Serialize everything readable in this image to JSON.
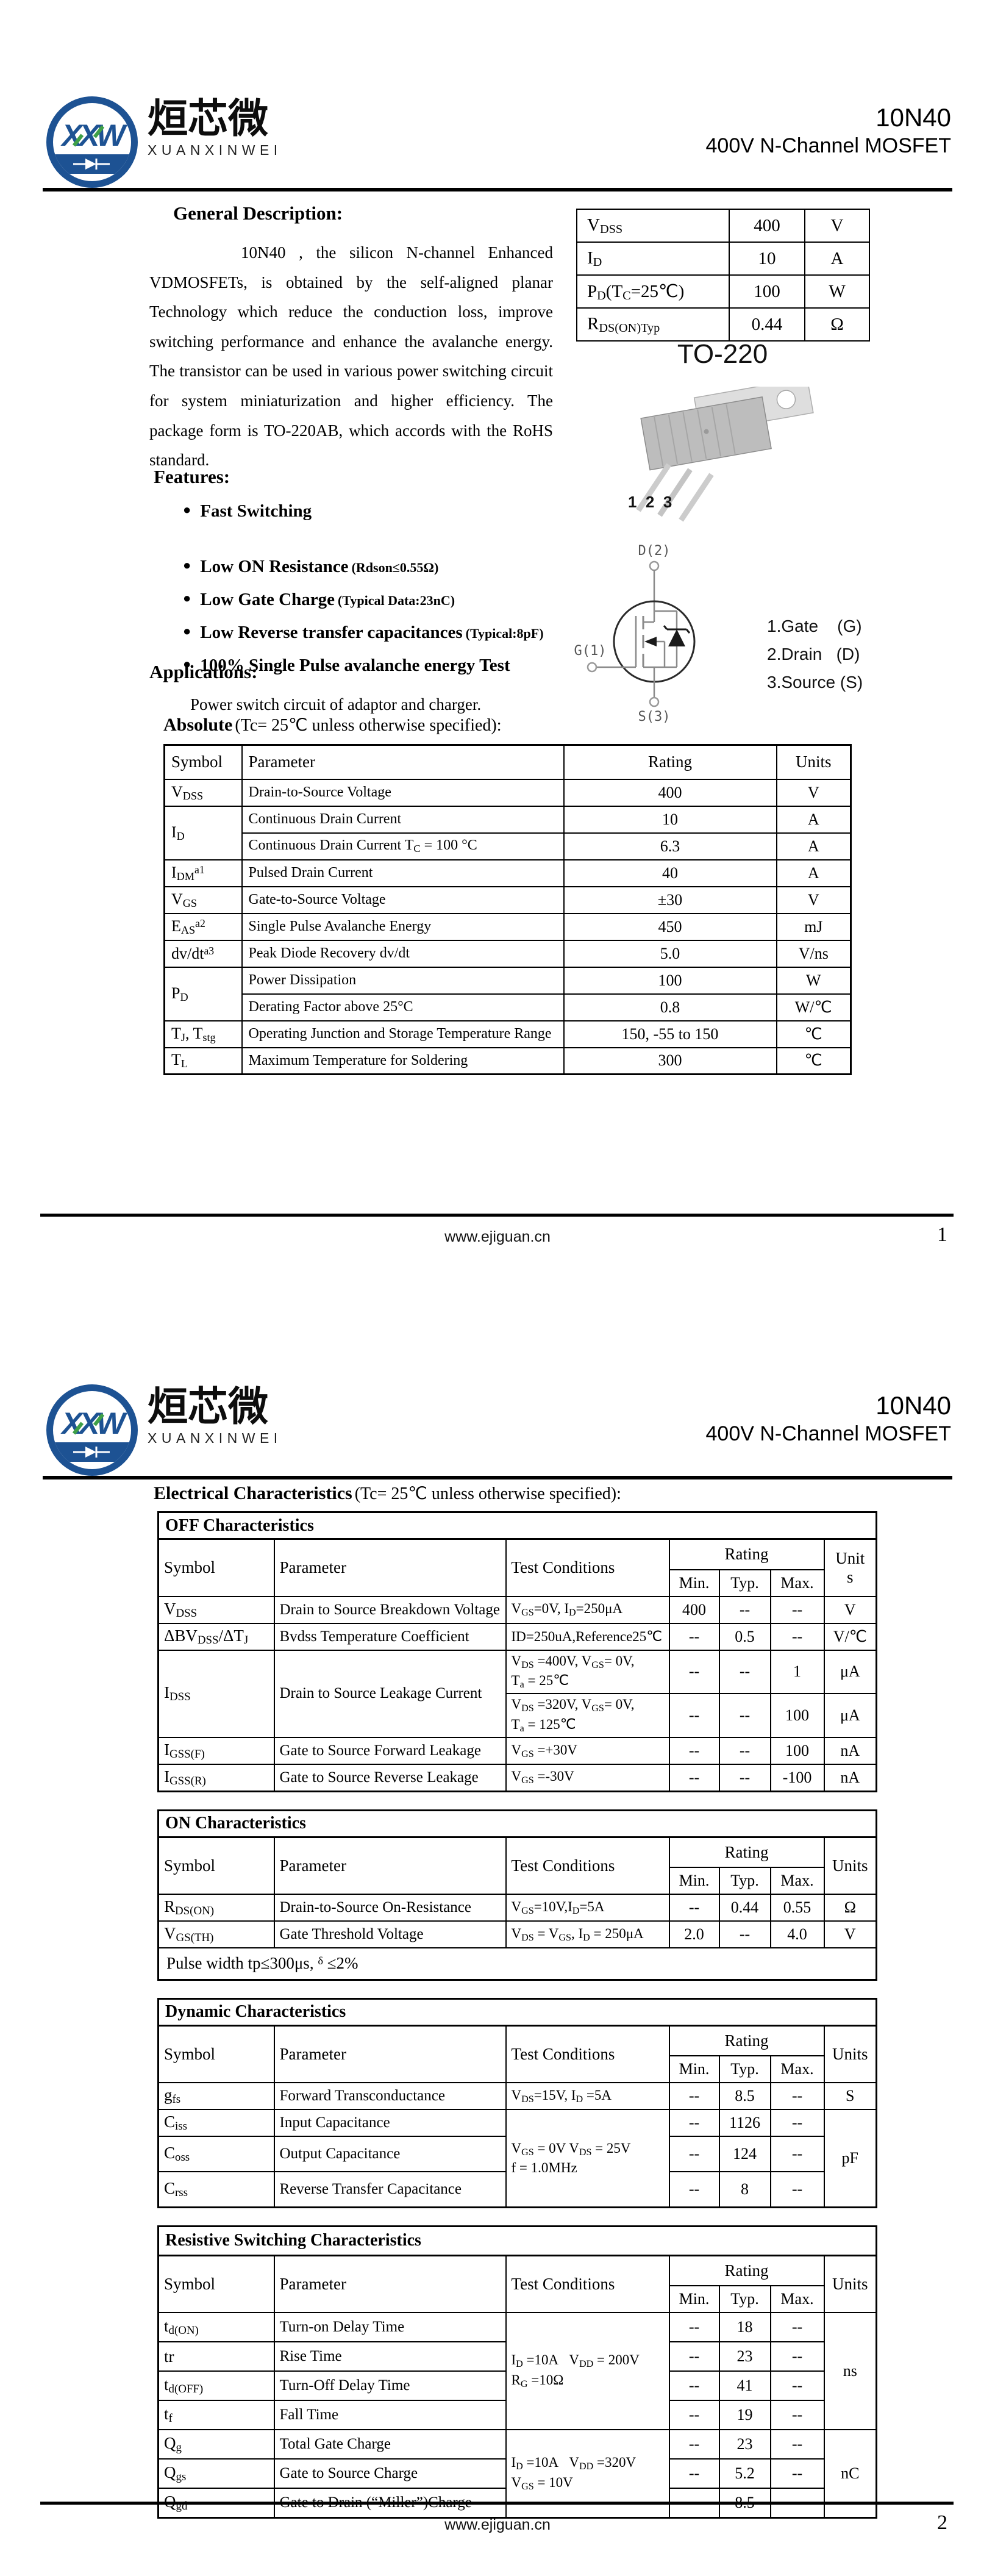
{
  "brand": {
    "cn": "烜芯微",
    "en": "XUANXINWEI",
    "monogram": "XXW"
  },
  "header": {
    "part": "10N40",
    "subtitle": "400V N-Channel MOSFET"
  },
  "footer": {
    "url": "www.ejiguan.cn",
    "page1": "1",
    "page2": "2"
  },
  "icons": {
    "bullet": "●"
  },
  "colors": {
    "logo_blue": "#1d5293",
    "logo_green": "#3fa047"
  },
  "page1": {
    "general": {
      "title": "General Description:",
      "body": "10N40 , the silicon N-channel Enhanced VDMOSFETs, is obtained by the self-aligned planar Technology which reduce the conduction loss, improve switching performance and enhance the avalanche energy. The transistor can be used in various power switching circuit for system miniaturization and higher efficiency. The package form is TO-220AB, which accords with the RoHS standard."
    },
    "quick_specs": [
      {
        "param": "V<sub>DSS</sub>",
        "value": "400",
        "unit": "V"
      },
      {
        "param": "I<sub>D</sub>",
        "value": "10",
        "unit": "A"
      },
      {
        "param": "P<sub>D</sub>(T<sub>C</sub>=25℃)",
        "value": "100",
        "unit": "W"
      },
      {
        "param": "R<sub>DS(ON)Typ</sub>",
        "value": "0.44",
        "unit": "Ω"
      }
    ],
    "package": {
      "name": "TO-220",
      "pins": "1  2  3"
    },
    "symbol": {
      "drain": "D(2)",
      "gate": "G(1)",
      "source": "S(3)"
    },
    "pin_list": [
      "1.Gate    (G)",
      "2.Drain   (D)",
      "3.Source (S)"
    ],
    "features": {
      "title": "Features:",
      "items": [
        {
          "text": "Fast Switching",
          "note": ""
        },
        {
          "text": "Low ON Resistance",
          "note": "(Rdson≤0.55Ω)"
        },
        {
          "text": "Low Gate Charge",
          "note": "(Typical Data:23nC)"
        },
        {
          "text": "Low Reverse transfer capacitances",
          "note": "(Typical:8pF)"
        },
        {
          "text": "100% Single Pulse avalanche energy Test",
          "note": ""
        }
      ]
    },
    "applications": {
      "title": "Applications:",
      "body": "Power switch circuit of adaptor and charger."
    },
    "absolute": {
      "title": "Absolute",
      "cond": "(Tc= 25℃  unless otherwise specified):",
      "headers": {
        "symbol": "Symbol",
        "parameter": "Parameter",
        "rating": "Rating",
        "units": "Units"
      },
      "rows": [
        {
          "symbol": "V<sub>DSS</sub>",
          "parameter": "Drain-to-Source Voltage",
          "rating": "400",
          "unit": "V"
        },
        {
          "symbol": "I<sub>D</sub>",
          "parameter": "Continuous Drain Current",
          "rating": "10",
          "unit": "A"
        },
        {
          "symbol": "",
          "parameter": "Continuous Drain Current T<sub>C</sub> = 100 °C",
          "rating": "6.3",
          "unit": "A"
        },
        {
          "symbol": "I<sub>DM</sub><sup>a1</sup>",
          "parameter": "Pulsed Drain Current",
          "rating": "40",
          "unit": "A"
        },
        {
          "symbol": "V<sub>GS</sub>",
          "parameter": "Gate-to-Source Voltage",
          "rating": "±30",
          "unit": "V"
        },
        {
          "symbol": "E<sub>AS</sub><sup>a2</sup>",
          "parameter": "Single Pulse Avalanche Energy",
          "rating": "450",
          "unit": "mJ"
        },
        {
          "symbol": "dv/dt<sup>a3</sup>",
          "parameter": "Peak Diode Recovery dv/dt",
          "rating": "5.0",
          "unit": "V/ns"
        },
        {
          "symbol": "P<sub>D</sub>",
          "parameter": "Power Dissipation",
          "rating": "100",
          "unit": "W"
        },
        {
          "symbol": "",
          "parameter": "Derating Factor above 25°C",
          "rating": "0.8",
          "unit": "W/℃"
        },
        {
          "symbol": "T<sub>J</sub>, T<sub>stg</sub>",
          "parameter": "Operating Junction and Storage Temperature Range",
          "rating": "150, -55 to 150",
          "unit": "℃"
        },
        {
          "symbol": "T<sub>L</sub>",
          "parameter": "Maximum Temperature for Soldering",
          "rating": "300",
          "unit": "℃"
        }
      ]
    }
  },
  "page2": {
    "heading": {
      "title": "Electrical Characteristics",
      "cond": "(Tc= 25℃  unless otherwise specified):"
    },
    "cols": {
      "symbol": "Symbol",
      "parameter": "Parameter",
      "test": "Test Conditions",
      "rating": "Rating",
      "min": "Min.",
      "typ": "Typ.",
      "max": "Max."
    },
    "off": {
      "title": "OFF Characteristics",
      "units_label": "Unit<br>s",
      "rows": [
        {
          "symbol": "V<sub>DSS</sub>",
          "parameter": "Drain to Source Breakdown Voltage",
          "test": "V<sub>GS</sub>=0V, I<sub>D</sub>=250μA",
          "min": "400",
          "typ": "--",
          "max": "--",
          "unit": "V"
        },
        {
          "symbol": "ΔBV<sub>DSS</sub>/ΔT<sub>J</sub>",
          "parameter": "Bvdss Temperature Coefficient",
          "test": "ID=250uA,Reference25℃",
          "min": "--",
          "typ": "0.5",
          "max": "--",
          "unit": "V/℃"
        },
        {
          "symbol": "I<sub>DSS</sub>",
          "parameter": "Drain to Source Leakage Current",
          "test": "V<sub>DS</sub> =400V, V<sub>GS</sub>= 0V,<br>T<sub>a</sub> = 25℃",
          "min": "--",
          "typ": "--",
          "max": "1",
          "unit": "μA"
        },
        {
          "symbol": "",
          "parameter": "",
          "test": "V<sub>DS</sub> =320V, V<sub>GS</sub>= 0V,<br>T<sub>a</sub> = 125℃",
          "min": "--",
          "typ": "--",
          "max": "100",
          "unit": "μA"
        },
        {
          "symbol": "I<sub>GSS(F)</sub>",
          "parameter": "Gate to Source Forward Leakage",
          "test": "V<sub>GS</sub> =+30V",
          "min": "--",
          "typ": "--",
          "max": "100",
          "unit": "nA"
        },
        {
          "symbol": "I<sub>GSS(R)</sub>",
          "parameter": "Gate to Source Reverse Leakage",
          "test": "V<sub>GS</sub> =-30V",
          "min": "--",
          "typ": "--",
          "max": "-100",
          "unit": "nA"
        }
      ]
    },
    "on": {
      "title": "ON Characteristics",
      "units_label": "Units",
      "footnote": "Pulse width tp≤300μs, <sup>δ</sup> ≤2%",
      "rows": [
        {
          "symbol": "R<sub>DS(ON)</sub>",
          "parameter": "Drain-to-Source On-Resistance",
          "test": "V<sub>GS</sub>=10V,I<sub>D</sub>=5A",
          "min": "--",
          "typ": "0.44",
          "max": "0.55",
          "unit": "Ω"
        },
        {
          "symbol": "V<sub>GS(TH)</sub>",
          "parameter": "Gate Threshold Voltage",
          "test": "V<sub>DS</sub> = V<sub>GS</sub>, I<sub>D</sub> = 250μA",
          "min": "2.0",
          "typ": "--",
          "max": "4.0",
          "unit": "V"
        }
      ]
    },
    "dynamic": {
      "title": "Dynamic Characteristics",
      "units_label": "Units",
      "rows": [
        {
          "symbol": "g<sub>fs</sub>",
          "parameter": "Forward Transconductance",
          "test": "V<sub>DS</sub>=15V, I<sub>D</sub> =5A",
          "min": "--",
          "typ": "8.5",
          "max": "--",
          "unit": "S"
        },
        {
          "symbol": "C<sub>iss</sub>",
          "parameter": "Input Capacitance",
          "test": "V<sub>GS</sub> = 0V V<sub>DS</sub> = 25V<br>f = 1.0MHz",
          "min": "--",
          "typ": "1126",
          "max": "--",
          "unit": "pF"
        },
        {
          "symbol": "C<sub>oss</sub>",
          "parameter": "Output Capacitance",
          "test": "",
          "min": "--",
          "typ": "124",
          "max": "--",
          "unit": ""
        },
        {
          "symbol": "C<sub>rss</sub>",
          "parameter": "Reverse Transfer Capacitance",
          "test": "",
          "min": "--",
          "typ": "8",
          "max": "--",
          "unit": ""
        }
      ]
    },
    "switching": {
      "title": "Resistive Switching Characteristics",
      "units_label": "Units",
      "rows": [
        {
          "symbol": "t<sub>d(ON)</sub>",
          "parameter": "Turn-on Delay Time",
          "test": "I<sub>D</sub> =10A&nbsp;&nbsp;&nbsp;V<sub>DD</sub> = 200V<br>R<sub>G</sub> =10Ω",
          "min": "--",
          "typ": "18",
          "max": "--",
          "unit": "ns"
        },
        {
          "symbol": "tr",
          "parameter": "Rise Time",
          "test": "",
          "min": "--",
          "typ": "23",
          "max": "--",
          "unit": ""
        },
        {
          "symbol": "t<sub>d(OFF)</sub>",
          "parameter": "Turn-Off Delay Time",
          "test": "",
          "min": "--",
          "typ": "41",
          "max": "--",
          "unit": ""
        },
        {
          "symbol": "t<sub>f</sub>",
          "parameter": "Fall Time",
          "test": "",
          "min": "--",
          "typ": "19",
          "max": "--",
          "unit": ""
        },
        {
          "symbol": "Q<sub>g</sub>",
          "parameter": "Total Gate Charge",
          "test": "I<sub>D</sub> =10A&nbsp;&nbsp;&nbsp;V<sub>DD</sub> =320V<br>V<sub>GS</sub> = 10V",
          "min": "--",
          "typ": "23",
          "max": "--",
          "unit": "nC"
        },
        {
          "symbol": "Q<sub>gs</sub>",
          "parameter": "Gate to Source Charge",
          "test": "",
          "min": "--",
          "typ": "5.2",
          "max": "--",
          "unit": ""
        },
        {
          "symbol": "Q<sub>gd</sub>",
          "parameter": "Gate to Drain (“Miller”)Charge",
          "test": "",
          "min": "--",
          "typ": "8.5",
          "max": "--",
          "unit": ""
        }
      ]
    }
  }
}
